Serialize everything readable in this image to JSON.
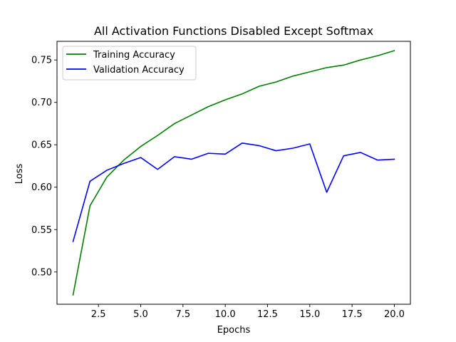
{
  "chart_data": {
    "type": "line",
    "title": "All Activation Functions Disabled Except Softmax",
    "xlabel": "Epochs",
    "ylabel": "Loss",
    "xlim": [
      0.05,
      20.95
    ],
    "ylim": [
      0.462,
      0.772
    ],
    "xticks": [
      2.5,
      5.0,
      7.5,
      10.0,
      12.5,
      15.0,
      17.5,
      20.0
    ],
    "xtick_labels": [
      "2.5",
      "5.0",
      "7.5",
      "10.0",
      "12.5",
      "15.0",
      "17.5",
      "20.0"
    ],
    "yticks": [
      0.5,
      0.55,
      0.6,
      0.65,
      0.7,
      0.75
    ],
    "ytick_labels": [
      "0.50",
      "0.55",
      "0.60",
      "0.65",
      "0.70",
      "0.75"
    ],
    "grid": false,
    "legend_position": "top-left",
    "x": [
      1,
      2,
      3,
      4,
      5,
      6,
      7,
      8,
      9,
      10,
      11,
      12,
      13,
      14,
      15,
      16,
      17,
      18,
      19,
      20
    ],
    "series": [
      {
        "name": "Training Accuracy",
        "color": "#008000",
        "values": [
          0.473,
          0.578,
          0.612,
          0.632,
          0.648,
          0.661,
          0.675,
          0.685,
          0.695,
          0.703,
          0.71,
          0.719,
          0.724,
          0.731,
          0.736,
          0.741,
          0.744,
          0.75,
          0.755,
          0.761
        ]
      },
      {
        "name": "Validation Accuracy",
        "color": "#0000ff",
        "values": [
          0.536,
          0.607,
          0.62,
          0.628,
          0.635,
          0.621,
          0.636,
          0.633,
          0.64,
          0.639,
          0.652,
          0.649,
          0.643,
          0.646,
          0.651,
          0.594,
          0.637,
          0.641,
          0.632,
          0.633
        ]
      }
    ]
  }
}
